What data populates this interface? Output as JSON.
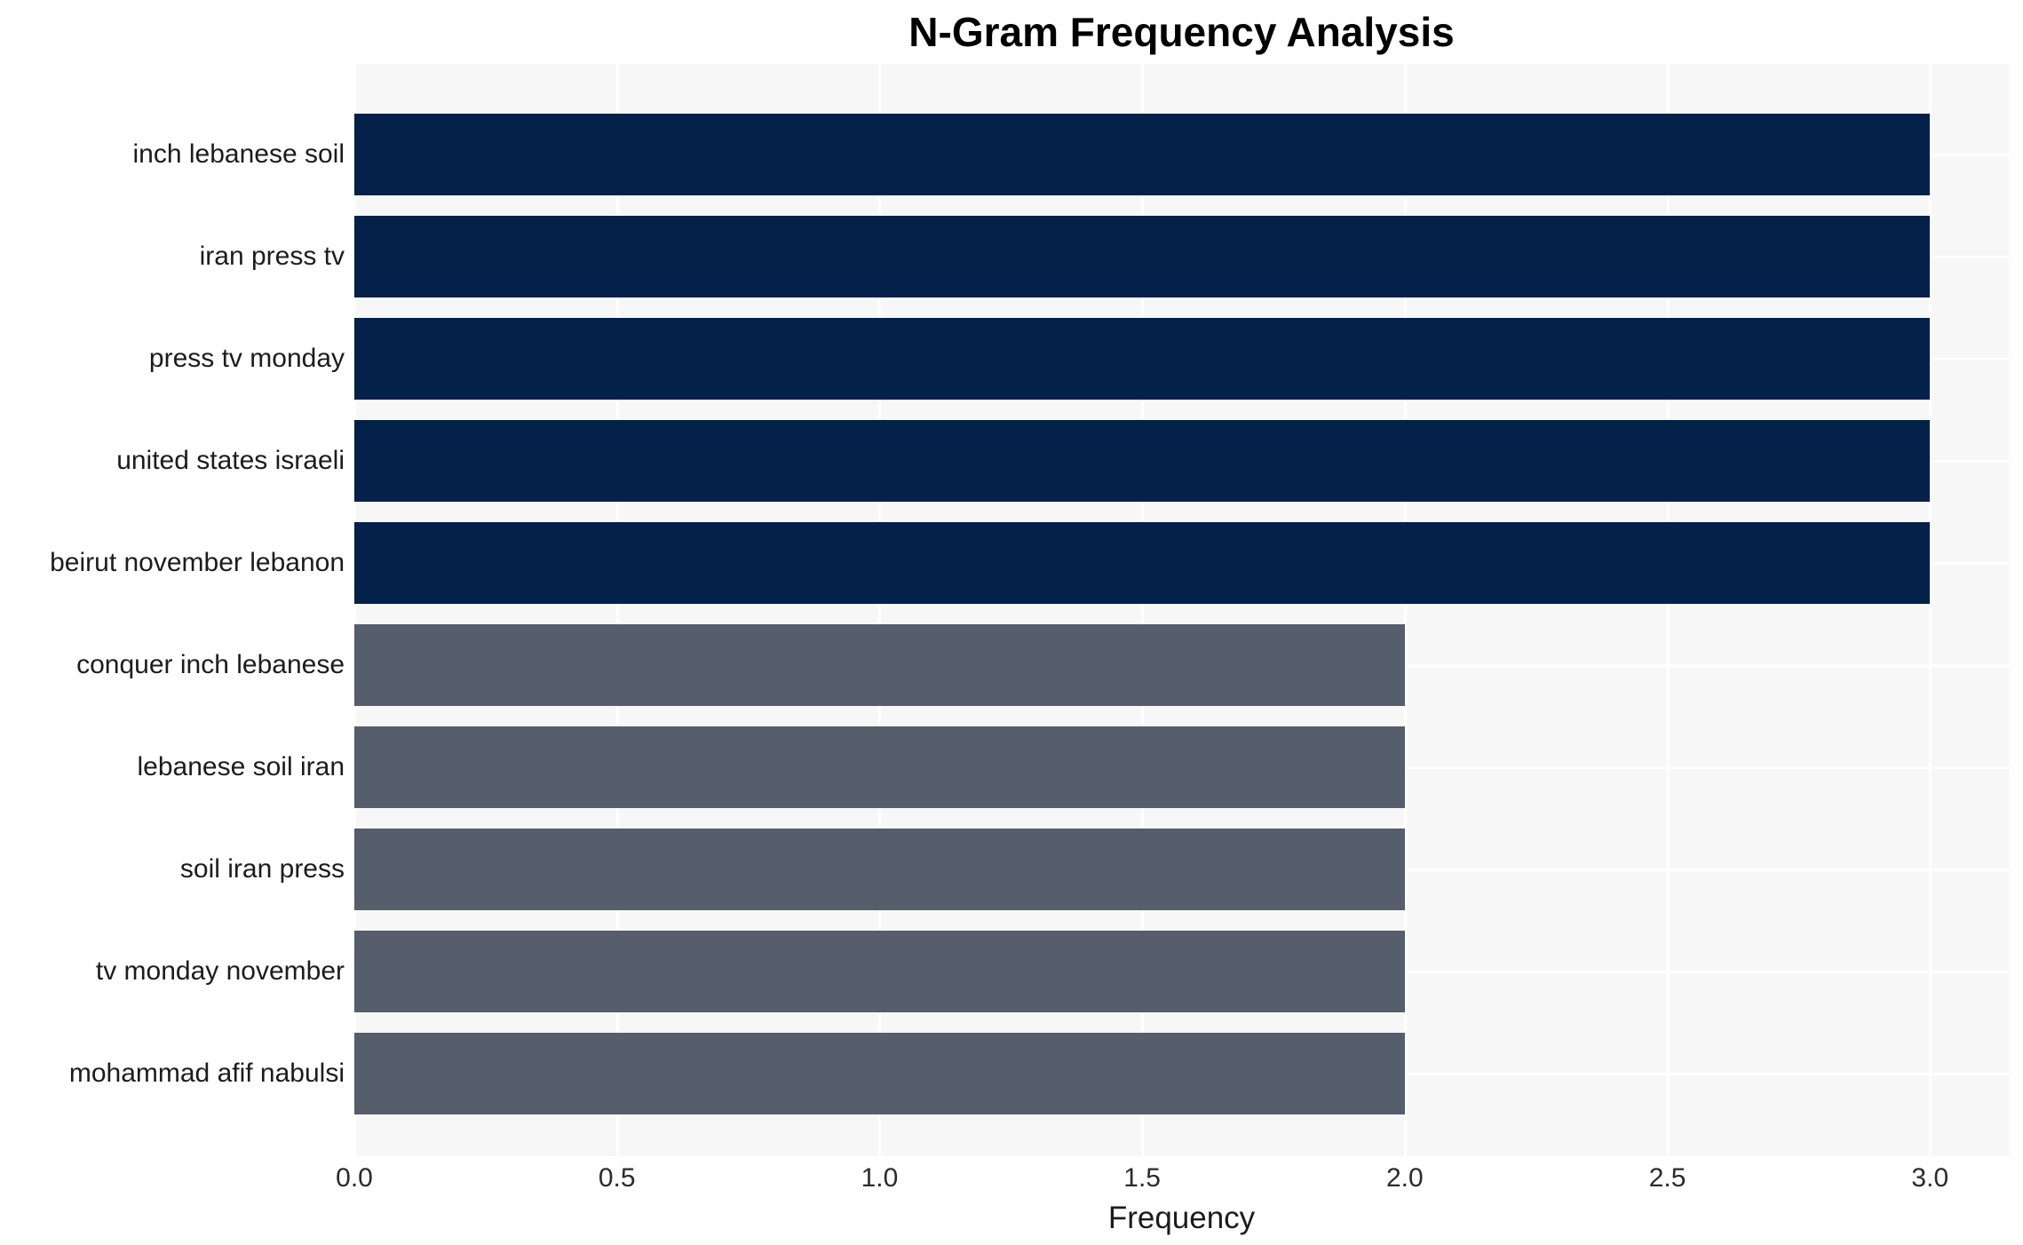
{
  "chart_data": {
    "type": "bar",
    "orientation": "horizontal",
    "title": "N-Gram Frequency Analysis",
    "xlabel": "Frequency",
    "ylabel": "",
    "categories": [
      "inch lebanese soil",
      "iran press tv",
      "press tv monday",
      "united states israeli",
      "beirut november lebanon",
      "conquer inch lebanese",
      "lebanese soil iran",
      "soil iran press",
      "tv monday november",
      "mohammad afif nabulsi"
    ],
    "values": [
      3.0,
      3.0,
      3.0,
      3.0,
      3.0,
      2.0,
      2.0,
      2.0,
      2.0,
      2.0
    ],
    "bar_colors": [
      "#032149",
      "#032149",
      "#032149",
      "#032149",
      "#032149",
      "#565d6b",
      "#565d6b",
      "#565d6b",
      "#565d6b",
      "#565d6b"
    ],
    "xlim": [
      0,
      3.15
    ],
    "xticks": [
      {
        "label": "0.0",
        "value": 0.0
      },
      {
        "label": "0.5",
        "value": 0.5
      },
      {
        "label": "1.0",
        "value": 1.0
      },
      {
        "label": "1.5",
        "value": 1.5
      },
      {
        "label": "2.0",
        "value": 2.0
      },
      {
        "label": "2.5",
        "value": 2.5
      },
      {
        "label": "3.0",
        "value": 3.0
      }
    ],
    "grid": "on",
    "legend": "none",
    "plot_background": "#f7f7f8",
    "grid_color": "#ffffff"
  }
}
